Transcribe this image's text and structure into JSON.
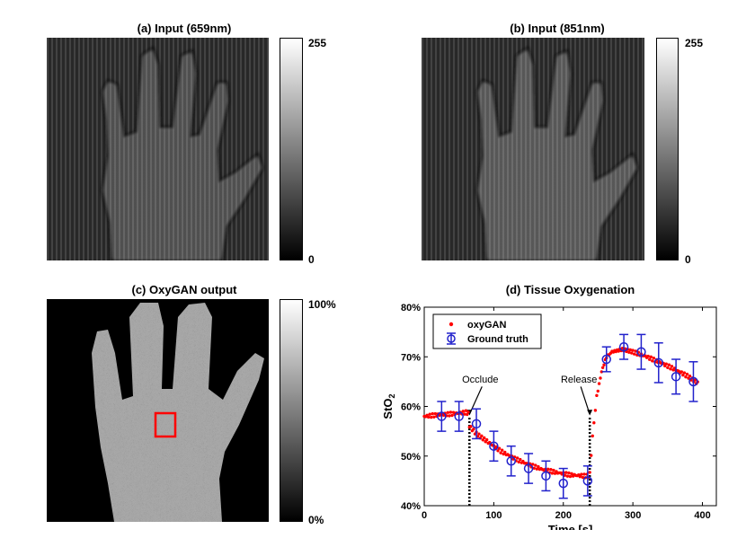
{
  "panels": {
    "a": {
      "title": "(a) Input (659nm)",
      "cbar_max": "255",
      "cbar_min": "0"
    },
    "b": {
      "title": "(b) Input (851nm)",
      "cbar_max": "255",
      "cbar_min": "0"
    },
    "c": {
      "title": "(c) OxyGAN output",
      "cbar_max": "100%",
      "cbar_min": "0%"
    }
  },
  "colors": {
    "oxygan": "#ff0000",
    "ground_truth": "#2222cc",
    "roi": "#ff0000"
  },
  "chart_data": {
    "type": "scatter",
    "title": "(d) Tissue Oxygenation",
    "xlabel": "Time [s]",
    "ylabel_main": "StO",
    "ylabel_sub": "2",
    "xlim": [
      0,
      420
    ],
    "ylim": [
      40,
      80
    ],
    "xticks": [
      0,
      100,
      200,
      300,
      400
    ],
    "yticks": [
      40,
      50,
      60,
      70,
      80
    ],
    "ytick_labels": [
      "40%",
      "50%",
      "60%",
      "70%",
      "80%"
    ],
    "grid": false,
    "legend": {
      "position": "top-left",
      "entries": [
        "oxyGAN",
        "Ground truth"
      ]
    },
    "annotations": [
      {
        "text": "Occlude",
        "x": 65
      },
      {
        "text": "Release",
        "x": 238
      }
    ],
    "oxygan_segments": [
      {
        "x": [
          0,
          20,
          40,
          60,
          65
        ],
        "y": [
          58,
          58.3,
          58.5,
          58.8,
          58.5
        ]
      },
      {
        "x": [
          65,
          75,
          90,
          110,
          130,
          150,
          170,
          190,
          210,
          230,
          238
        ],
        "y": [
          56,
          54.5,
          53,
          51,
          49.5,
          48.3,
          47.3,
          46.7,
          46.2,
          46,
          46
        ]
      },
      {
        "x": [
          238,
          242,
          248,
          255,
          262,
          270,
          285,
          300,
          320,
          340,
          360,
          380,
          395
        ],
        "y": [
          46.5,
          54,
          62,
          67,
          70,
          71,
          71.5,
          71,
          70,
          68.8,
          67.5,
          66,
          64.5
        ]
      }
    ],
    "ground_truth": {
      "x": [
        25,
        50,
        75,
        100,
        125,
        150,
        175,
        200,
        235,
        262,
        287,
        312,
        337,
        362,
        387
      ],
      "y": [
        58,
        58,
        56.5,
        52,
        49,
        47.5,
        46,
        44.5,
        45,
        69.5,
        72,
        71,
        68.8,
        66,
        65
      ],
      "err": [
        3,
        3,
        3,
        3,
        3,
        3,
        3,
        3,
        3,
        2.5,
        2.5,
        3.5,
        4,
        3.5,
        4
      ]
    }
  }
}
